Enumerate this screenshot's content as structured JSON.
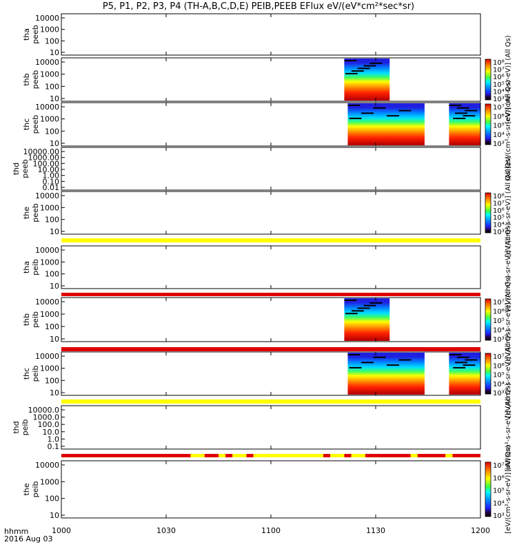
{
  "title": "P5, P1, P2, P3, P4 (TH-A,B,C,D,E) PEIB,PEEB EFlux eV/(eV*cm²*sec*sr)",
  "footer": {
    "line1": "hhmm",
    "line2": "2016 Aug 03"
  },
  "chart_data": {
    "type": "heatmap",
    "x_axis": {
      "ticks": [
        "1000",
        "1030",
        "1100",
        "1130",
        "1200"
      ],
      "range": [
        "10:00",
        "12:00"
      ]
    },
    "colors": {
      "blue": "#2020e0",
      "red": "#e00000",
      "yellow": "#ffff00",
      "black": "#000000"
    },
    "panels": [
      {
        "id": "tha-peeb",
        "ylabel": [
          "tha",
          "peeb"
        ],
        "yticks": [
          "10000",
          "1000",
          "100",
          "10"
        ],
        "has_colorbar": false,
        "cbar_label": "",
        "cbar_ticks": [],
        "data_intervals": []
      },
      {
        "id": "thb-peeb",
        "ylabel": [
          "thb",
          "peeb"
        ],
        "yticks": [
          "10000",
          "1000",
          "100",
          "10"
        ],
        "has_colorbar": true,
        "cbar_label": "[eV/(cm²-s-sr-eV)] (All Qs)",
        "cbar_ticks": [
          "10⁸",
          "10⁷",
          "10⁶",
          "10⁵",
          "10⁴",
          "10³"
        ],
        "data_intervals": [
          [
            "11:21",
            "11:34"
          ]
        ]
      },
      {
        "id": "thc-peeb",
        "ylabel": [
          "thc",
          "peeb"
        ],
        "yticks": [
          "10000",
          "1000",
          "100",
          "10"
        ],
        "has_colorbar": true,
        "cbar_label": "[eV/(cm²-s-sr-eV)] (All Qs)",
        "cbar_ticks": [
          "10⁷",
          "10⁶",
          "10⁵",
          "10⁴",
          "10³"
        ],
        "data_intervals": [
          [
            "11:22",
            "11:44"
          ],
          [
            "11:51",
            "12:00"
          ]
        ]
      },
      {
        "id": "thd-peeb",
        "ylabel": [
          "thd",
          "peeb"
        ],
        "yticks": [
          "10000.00",
          "1000.00",
          "100.00",
          "10.00",
          "1.00",
          "0.10",
          "0.01"
        ],
        "has_colorbar": false,
        "cbar_label": "(All Qs)",
        "cbar_ticks": [],
        "data_intervals": []
      },
      {
        "id": "the-peeb",
        "ylabel": [
          "the",
          "peeb"
        ],
        "yticks": [
          "10000",
          "1000",
          "100",
          "10"
        ],
        "has_colorbar": true,
        "cbar_label": "[eV/(cm²-s-sr-eV)] (All Qs)",
        "cbar_ticks": [
          "10⁸",
          "10⁷",
          "10⁶",
          "10⁵",
          "10⁴",
          "10³"
        ],
        "data_intervals": []
      },
      {
        "id": "tha-peib",
        "ylabel": [
          "tha",
          "peib"
        ],
        "yticks": [
          "10000",
          "1000",
          "100",
          "10"
        ],
        "has_colorbar": false,
        "cbar_label": "[eV/(cm²-s-sr-eV)] (All Qs)",
        "cbar_ticks": [],
        "data_intervals": []
      },
      {
        "id": "thb-peib",
        "ylabel": [
          "thb",
          "peib"
        ],
        "yticks": [
          "10000",
          "1000",
          "100",
          "10"
        ],
        "has_colorbar": true,
        "cbar_label": "[eV/(cm²-s-sr-eV)] (All Qs)",
        "cbar_ticks": [
          "10⁷",
          "10⁶",
          "10⁵",
          "10⁴",
          "10³"
        ],
        "data_intervals": [
          [
            "11:21",
            "11:34"
          ]
        ]
      },
      {
        "id": "thc-peib",
        "ylabel": [
          "thc",
          "peib"
        ],
        "yticks": [
          "10000",
          "1000",
          "100",
          "10"
        ],
        "has_colorbar": true,
        "cbar_label": "[eV/(cm²-s-sr-eV)] (All Qs)",
        "cbar_ticks": [
          "10⁷",
          "10⁶",
          "10⁵",
          "10⁴",
          "10³"
        ],
        "data_intervals": [
          [
            "11:22",
            "11:44"
          ],
          [
            "11:51",
            "12:00"
          ]
        ]
      },
      {
        "id": "thd-peib",
        "ylabel": [
          "thd",
          "peib"
        ],
        "yticks": [
          "10000.0",
          "1000.0",
          "100.0",
          "10.0",
          "1.0",
          "0.1"
        ],
        "has_colorbar": false,
        "cbar_label": "[eV/(cm²-s-sr-eV)] (All Qs)",
        "cbar_ticks": [],
        "data_intervals": []
      },
      {
        "id": "the-peib",
        "ylabel": [
          "the",
          "peib"
        ],
        "yticks": [
          "10000",
          "1000",
          "100",
          "10"
        ],
        "has_colorbar": true,
        "cbar_label": "[eV/(cm²-s-sr-eV)] (All Qs)",
        "cbar_ticks": [
          "10⁷",
          "10⁶",
          "10⁵",
          "10⁴",
          "10³"
        ],
        "data_intervals": []
      }
    ],
    "status_bars": [
      {
        "id": "status-bar-1",
        "segments": [
          [
            "10:00",
            "12:00",
            "yellow"
          ]
        ]
      },
      {
        "id": "status-bar-2",
        "segments": [
          [
            "10:00",
            "12:00",
            "red"
          ]
        ]
      },
      {
        "id": "status-bar-3",
        "segments": [
          [
            "10:00",
            "12:00",
            "red"
          ]
        ]
      },
      {
        "id": "status-bar-4",
        "segments": [
          [
            "10:00",
            "12:00",
            "yellow"
          ]
        ]
      },
      {
        "id": "status-bar-5",
        "segments": [
          [
            "10:00",
            "10:37",
            "red"
          ],
          [
            "10:37",
            "10:41",
            "yellow"
          ],
          [
            "10:41",
            "10:45",
            "red"
          ],
          [
            "10:45",
            "10:47",
            "yellow"
          ],
          [
            "10:47",
            "10:49",
            "red"
          ],
          [
            "10:49",
            "10:53",
            "yellow"
          ],
          [
            "10:53",
            "10:55",
            "red"
          ],
          [
            "10:55",
            "11:15",
            "yellow"
          ],
          [
            "11:15",
            "11:17",
            "red"
          ],
          [
            "11:17",
            "11:21",
            "yellow"
          ],
          [
            "11:21",
            "11:23",
            "red"
          ],
          [
            "11:23",
            "11:27",
            "yellow"
          ],
          [
            "11:27",
            "11:40",
            "red"
          ],
          [
            "11:40",
            "11:42",
            "yellow"
          ],
          [
            "11:42",
            "11:50",
            "red"
          ],
          [
            "11:50",
            "11:52",
            "yellow"
          ],
          [
            "11:52",
            "12:00",
            "red"
          ]
        ]
      }
    ]
  }
}
